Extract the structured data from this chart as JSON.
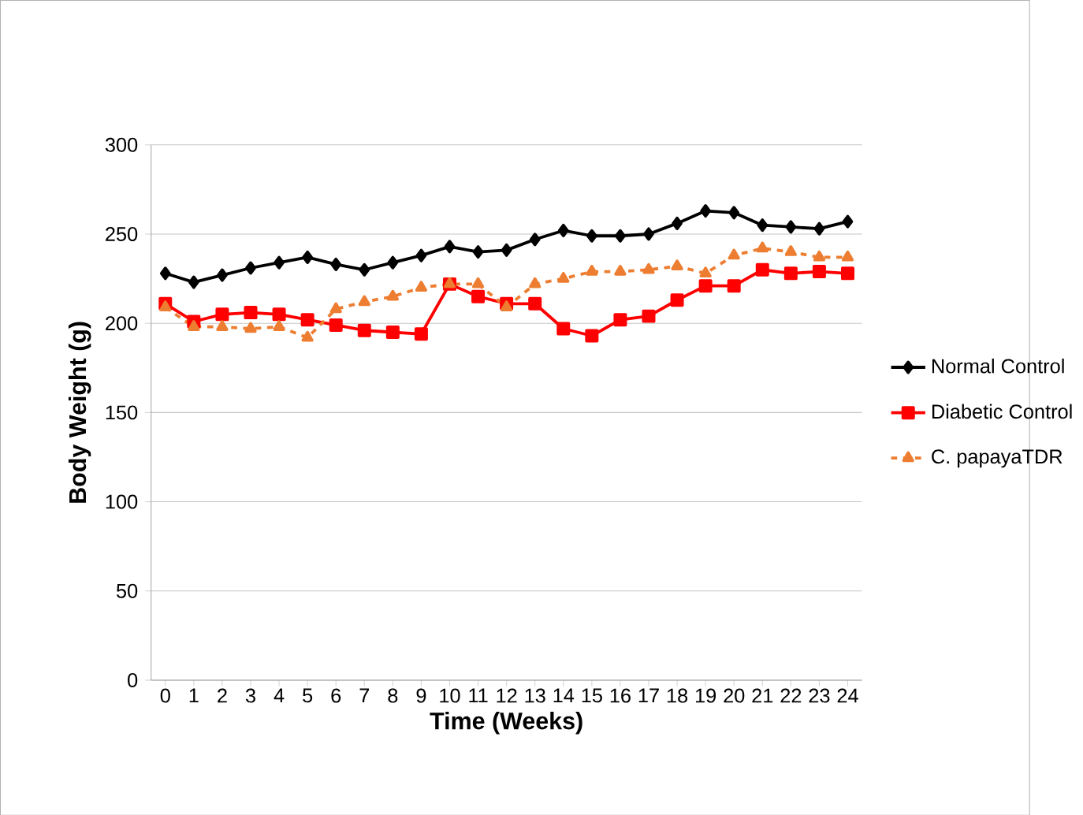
{
  "chart_data": {
    "type": "line",
    "xlabel": "Time (Weeks)",
    "ylabel": "Body Weight (g)",
    "categories": [
      "0",
      "1",
      "2",
      "3",
      "4",
      "5",
      "6",
      "7",
      "8",
      "9",
      "10",
      "11",
      "12",
      "13",
      "14",
      "15",
      "16",
      "17",
      "18",
      "19",
      "20",
      "21",
      "22",
      "23",
      "24"
    ],
    "series": [
      {
        "name": "Normal Control",
        "color": "#000000",
        "marker": "diamond",
        "line_style": "solid",
        "values": [
          228,
          223,
          227,
          231,
          234,
          237,
          233,
          230,
          234,
          238,
          243,
          240,
          241,
          247,
          252,
          249,
          249,
          250,
          256,
          263,
          262,
          255,
          254,
          253,
          257
        ]
      },
      {
        "name": "Diabetic Control",
        "color": "#ff0000",
        "marker": "square",
        "line_style": "solid",
        "values": [
          211,
          201,
          205,
          206,
          205,
          202,
          199,
          196,
          195,
          194,
          222,
          215,
          211,
          211,
          197,
          193,
          202,
          204,
          213,
          221,
          221,
          230,
          228,
          229,
          228
        ]
      },
      {
        "name": "C. papayaTDR",
        "color": "#ed7d31",
        "marker": "triangle",
        "line_style": "dashed",
        "values": [
          209,
          198,
          198,
          197,
          198,
          192,
          208,
          212,
          215,
          220,
          222,
          222,
          209,
          222,
          225,
          229,
          229,
          230,
          232,
          228,
          238,
          242,
          240,
          237,
          237
        ]
      }
    ],
    "ylim": [
      0,
      300
    ],
    "yticks": [
      0,
      50,
      100,
      150,
      200,
      250,
      300
    ],
    "grid": "y",
    "legend": "right"
  }
}
